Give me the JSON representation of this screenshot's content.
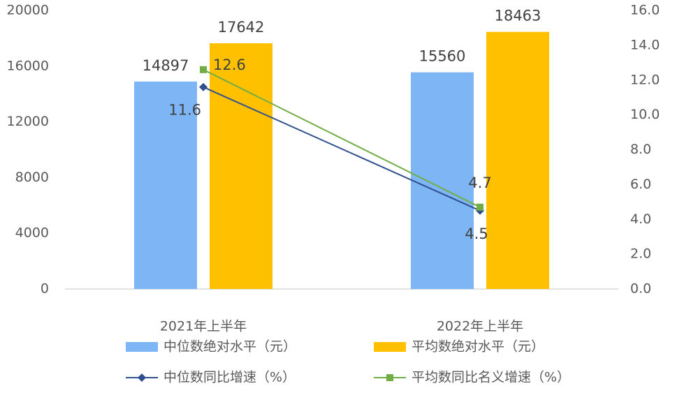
{
  "chart_data": {
    "type": "bar",
    "categories": [
      "2021年上半年",
      "2022年上半年"
    ],
    "series": [
      {
        "name": "中位数绝对水平（元）",
        "type": "bar",
        "color": "#7eb6f5",
        "values": [
          14897,
          15560
        ]
      },
      {
        "name": "平均数绝对水平（元）",
        "type": "bar",
        "color": "#ffc000",
        "values": [
          17642,
          18463
        ]
      },
      {
        "name": "中位数同比增速（%）",
        "type": "line",
        "axis": "y2",
        "marker": "diamond",
        "color": "#2f4f8f",
        "values": [
          11.6,
          4.5
        ]
      },
      {
        "name": "平均数同比名义增速（%）",
        "type": "line",
        "axis": "y2",
        "marker": "square",
        "color": "#70ad47",
        "values": [
          12.6,
          4.7
        ]
      }
    ],
    "ylim": [
      0,
      20000
    ],
    "yticks": [
      0,
      4000,
      8000,
      12000,
      16000,
      20000
    ],
    "y2lim": [
      0,
      16
    ],
    "y2ticks": [
      {
        "value": 0,
        "label": "0.0"
      },
      {
        "value": 2,
        "label": "2.0"
      },
      {
        "value": 4,
        "label": "4.0"
      },
      {
        "value": 6,
        "label": "6.0"
      },
      {
        "value": 8,
        "label": "8.0"
      },
      {
        "value": 10,
        "label": "10.0"
      },
      {
        "value": 12,
        "label": "12.0"
      },
      {
        "value": 14,
        "label": "14.0"
      },
      {
        "value": 16,
        "label": "16.0"
      }
    ],
    "grid": false,
    "legend": "bottom"
  }
}
